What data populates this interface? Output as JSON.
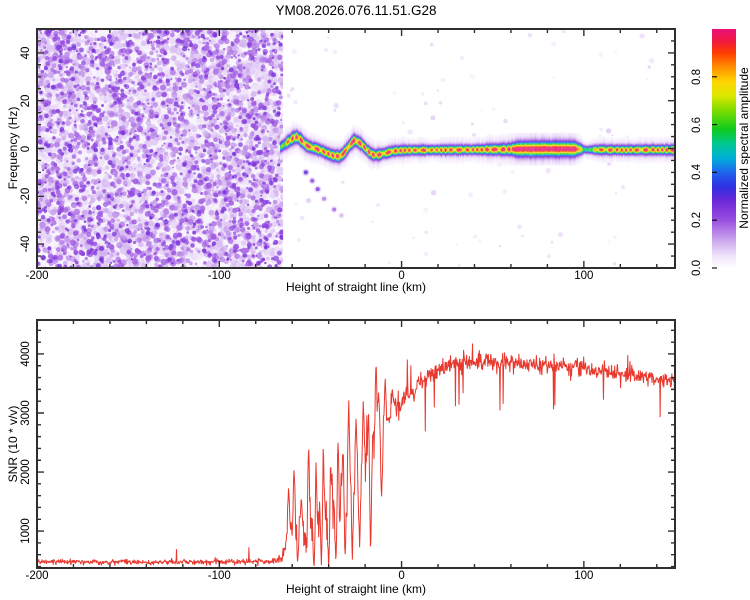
{
  "title": "YM08.2026.076.11.51.G28",
  "colors": {
    "background": "#ffffff",
    "axis": "#2e2e2e",
    "text": "#000000",
    "snr_line": "#e8392f"
  },
  "chart_data": [
    {
      "type": "heatmap",
      "description": "Spectrogram of occultation signal: dense purple noise field left of -65 km, narrow rainbow-colored spectral line near 0 Hz to the right",
      "xlabel": "Height of straight line (km)",
      "ylabel": "Frequency (Hz)",
      "xlim": [
        -200,
        150
      ],
      "ylim": [
        -50,
        50
      ],
      "xticks": {
        "major": [
          -200,
          -100,
          0,
          100
        ],
        "labels": [
          "-200",
          "-100",
          "0",
          "100"
        ],
        "minor_step": 20
      },
      "yticks": {
        "major": [
          40,
          20,
          0,
          -20,
          -40
        ],
        "labels": [
          "40",
          "20",
          "0",
          "-20",
          "-40"
        ],
        "minor_step": 5
      },
      "colorbar": {
        "label": "Normalized spectral amplitude",
        "ticks": [
          "0.0",
          "0.2",
          "0.4",
          "0.6",
          "0.8"
        ],
        "tick_values": [
          0.0,
          0.2,
          0.4,
          0.6,
          0.8
        ],
        "range": [
          0,
          1
        ]
      },
      "colormap_stops": [
        [
          0.0,
          "#ffffff"
        ],
        [
          0.05,
          "#f0e4fb"
        ],
        [
          0.12,
          "#c9a2ec"
        ],
        [
          0.2,
          "#9a4fe0"
        ],
        [
          0.28,
          "#6d28d8"
        ],
        [
          0.34,
          "#2f2fe2"
        ],
        [
          0.4,
          "#1f64ee"
        ],
        [
          0.46,
          "#00b0d8"
        ],
        [
          0.52,
          "#00c890"
        ],
        [
          0.58,
          "#0ecb1e"
        ],
        [
          0.66,
          "#7edc00"
        ],
        [
          0.72,
          "#dce800"
        ],
        [
          0.78,
          "#ffd400"
        ],
        [
          0.84,
          "#ff9000"
        ],
        [
          0.9,
          "#ff3c00"
        ],
        [
          0.95,
          "#f01840"
        ],
        [
          1.0,
          "#ea0f7a"
        ]
      ],
      "noise_region": {
        "x_range": [
          -200,
          -65
        ],
        "amplitude_range": [
          0.03,
          0.27
        ]
      },
      "signal_trace": {
        "points": [
          [
            -66.5,
            0.3
          ],
          [
            -64,
            1.8
          ],
          [
            -62,
            3.0
          ],
          [
            -59,
            4.6
          ],
          [
            -57,
            4.8
          ],
          [
            -55,
            3.4
          ],
          [
            -52,
            1.2
          ],
          [
            -49,
            0.3
          ],
          [
            -47,
            0.0
          ],
          [
            -44,
            -0.9
          ],
          [
            -42,
            -1.6
          ],
          [
            -39,
            -2.6
          ],
          [
            -36,
            -3.2
          ],
          [
            -34,
            -3.4
          ],
          [
            -32,
            -2.2
          ],
          [
            -30,
            -0.4
          ],
          [
            -28,
            1.8
          ],
          [
            -26,
            3.4
          ],
          [
            -24,
            2.8
          ],
          [
            -22,
            1.8
          ],
          [
            -20,
            0.2
          ],
          [
            -18,
            -1.4
          ],
          [
            -16,
            -2.4
          ],
          [
            -14,
            -2.8
          ],
          [
            -12,
            -2.5
          ],
          [
            -9,
            -2.0
          ],
          [
            -6,
            -1.4
          ],
          [
            -3,
            -1.0
          ],
          [
            0,
            -0.8
          ],
          [
            10,
            -0.7
          ],
          [
            25,
            -0.6
          ],
          [
            45,
            -0.5
          ],
          [
            62,
            -0.3
          ],
          [
            80,
            -0.2
          ],
          [
            97,
            -0.3
          ],
          [
            102,
            -0.5
          ],
          [
            115,
            -0.6
          ],
          [
            135,
            -0.6
          ],
          [
            150,
            -0.6
          ]
        ],
        "width_profile": [
          [
            -66.5,
            3.0,
            0.55
          ],
          [
            -63,
            3.4,
            0.85
          ],
          [
            -58,
            3.6,
            1.0
          ],
          [
            -50,
            3.2,
            0.95
          ],
          [
            -40,
            3.2,
            0.95
          ],
          [
            -30,
            3.4,
            1.0
          ],
          [
            -20,
            3.2,
            0.95
          ],
          [
            -10,
            3.0,
            0.95
          ],
          [
            0,
            2.8,
            0.95
          ],
          [
            20,
            2.7,
            0.92
          ],
          [
            40,
            2.7,
            0.95
          ],
          [
            60,
            3.4,
            1.0
          ],
          [
            64,
            4.4,
            1.0
          ],
          [
            95,
            4.4,
            1.0
          ],
          [
            98,
            3.4,
            0.8
          ],
          [
            100.5,
            2.3,
            0.55
          ],
          [
            104,
            2.4,
            0.6
          ],
          [
            107,
            2.7,
            0.9
          ],
          [
            120,
            2.7,
            0.95
          ],
          [
            150,
            2.8,
            0.95
          ]
        ],
        "fat_segment": [
          62,
          98
        ],
        "pinch_segment": [
          99,
          106
        ]
      },
      "sub_blobs": [
        [
          -52.5,
          -10,
          0.3
        ],
        [
          -49,
          -13.5,
          0.22
        ],
        [
          -46,
          -17,
          0.25
        ],
        [
          -42.5,
          -21,
          0.16
        ],
        [
          -37,
          -25.5,
          0.18
        ],
        [
          -33,
          -28,
          0.1
        ]
      ]
    },
    {
      "type": "line",
      "description": "SNR vs height: flat noise floor ~480 below -66 km, strongly spiking transition between -65 and 0 km, plateau ~3850 above +25 km slowly decaying to ~3500",
      "xlabel": "Height of straight line (km)",
      "ylabel": "SNR (10 * v/v)",
      "xlim": [
        -200,
        150
      ],
      "ylim": [
        375,
        4575
      ],
      "xticks": {
        "major": [
          -200,
          -100,
          0,
          100
        ],
        "labels": [
          "-200",
          "-100",
          "0",
          "100"
        ],
        "minor_step": 20
      },
      "yticks": {
        "major": [
          1000,
          2000,
          3000,
          4000
        ],
        "labels": [
          "1000",
          "2000",
          "3000",
          "4000"
        ],
        "minor_step": 200
      },
      "series": [
        {
          "name": "SNR",
          "color": "#e8392f",
          "envelope": [
            [
              -200,
              480,
              95
            ],
            [
              -90,
              480,
              95
            ],
            [
              -70,
              485,
              100
            ],
            [
              -66,
              520,
              160
            ],
            [
              -64,
              700,
              420
            ],
            [
              -62,
              950,
              650
            ],
            [
              -58,
              1050,
              780
            ],
            [
              -54,
              1000,
              800
            ],
            [
              -50,
              1080,
              820
            ],
            [
              -46,
              1150,
              850
            ],
            [
              -42,
              1250,
              850
            ],
            [
              -38,
              1350,
              850
            ],
            [
              -34,
              1500,
              850
            ],
            [
              -30,
              1650,
              900
            ],
            [
              -26,
              1850,
              850
            ],
            [
              -22,
              2100,
              800
            ],
            [
              -18,
              2350,
              750
            ],
            [
              -14,
              2550,
              800
            ],
            [
              -10,
              2750,
              600
            ],
            [
              -6,
              2950,
              480
            ],
            [
              -2,
              3100,
              420
            ],
            [
              2,
              3250,
              380
            ],
            [
              8,
              3450,
              340
            ],
            [
              15,
              3650,
              320
            ],
            [
              25,
              3800,
              300
            ],
            [
              35,
              3870,
              300
            ],
            [
              50,
              3880,
              290
            ],
            [
              65,
              3830,
              300
            ],
            [
              80,
              3820,
              320
            ],
            [
              95,
              3780,
              300
            ],
            [
              110,
              3720,
              280
            ],
            [
              125,
              3650,
              260
            ],
            [
              138,
              3570,
              250
            ],
            [
              150,
              3520,
              250
            ]
          ],
          "spikes": [
            [
              -62,
              1750
            ],
            [
              -59,
              2100
            ],
            [
              -55,
              1600
            ],
            [
              -51,
              2500
            ],
            [
              -47,
              2200
            ],
            [
              -43,
              2450
            ],
            [
              -39,
              2250
            ],
            [
              -35,
              2700
            ],
            [
              -32,
              2500
            ],
            [
              -29,
              3300
            ],
            [
              -25,
              2900
            ],
            [
              -21,
              3250
            ],
            [
              -18,
              3050
            ],
            [
              -14,
              3980
            ],
            [
              -12.6,
              3400
            ],
            [
              -9,
              3600
            ],
            [
              -5,
              3400
            ]
          ],
          "dips": [
            [
              -57,
              420
            ],
            [
              -48,
              380
            ],
            [
              -44,
              420
            ],
            [
              -40,
              380
            ],
            [
              -36,
              430
            ],
            [
              -31,
              520
            ],
            [
              -27,
              480
            ],
            [
              -23,
              700
            ],
            [
              -17,
              560
            ],
            [
              -11,
              1500
            ]
          ]
        }
      ]
    }
  ]
}
